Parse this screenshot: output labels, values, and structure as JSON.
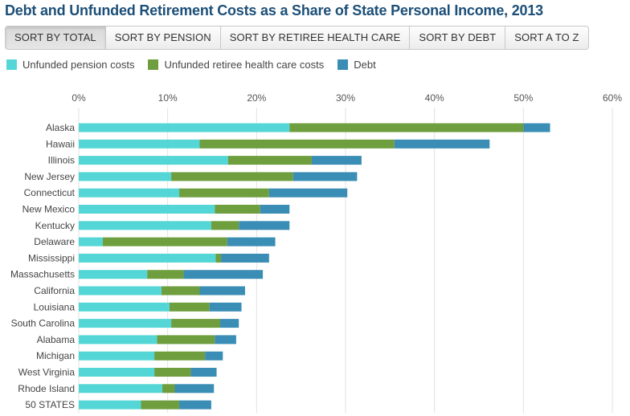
{
  "title": "Debt and Unfunded Retirement Costs as a Share of State Personal Income, 2013",
  "sort_buttons": [
    {
      "label": "SORT BY TOTAL",
      "active": true
    },
    {
      "label": "SORT BY PENSION",
      "active": false
    },
    {
      "label": "SORT BY RETIREE HEALTH CARE",
      "active": false
    },
    {
      "label": "SORT BY DEBT",
      "active": false
    },
    {
      "label": "SORT A TO Z",
      "active": false
    }
  ],
  "colors": {
    "pension": "#55d6d6",
    "health": "#6e9e3e",
    "debt": "#3a8db5",
    "grid": "#e2e2e2",
    "label": "#444444"
  },
  "chart_data": {
    "type": "bar",
    "orientation": "horizontal",
    "stacked": true,
    "title": "Debt and Unfunded Retirement Costs as a Share of State Personal Income, 2013",
    "xlabel": "",
    "ylabel": "",
    "xlim": [
      0,
      60
    ],
    "xticks": [
      "0%",
      "10%",
      "20%",
      "30%",
      "40%",
      "50%",
      "60%"
    ],
    "xtick_values": [
      0,
      10,
      20,
      30,
      40,
      50,
      60
    ],
    "grid": true,
    "legend_position": "top-left",
    "categories": [
      "Alaska",
      "Hawaii",
      "Illinois",
      "New Jersey",
      "Connecticut",
      "New Mexico",
      "Kentucky",
      "Delaware",
      "Mississippi",
      "Massachusetts",
      "California",
      "Louisiana",
      "South Carolina",
      "Alabama",
      "Michigan",
      "West Virginia",
      "Rhode Island",
      "50 STATES"
    ],
    "series": [
      {
        "key": "pension",
        "name": "Unfunded pension costs",
        "values": [
          23.7,
          13.6,
          16.8,
          10.4,
          11.3,
          15.3,
          14.9,
          2.7,
          15.4,
          7.7,
          9.3,
          10.2,
          10.4,
          8.8,
          8.5,
          8.5,
          9.4,
          7.0
        ]
      },
      {
        "key": "health",
        "name": "Unfunded retiree health care costs",
        "values": [
          26.3,
          21.9,
          9.4,
          13.7,
          10.1,
          5.1,
          3.1,
          14.0,
          0.6,
          4.1,
          4.3,
          4.5,
          5.5,
          6.5,
          5.7,
          4.1,
          1.4,
          4.3
        ]
      },
      {
        "key": "debt",
        "name": "Debt",
        "values": [
          3.0,
          10.7,
          5.6,
          7.2,
          8.8,
          3.3,
          5.7,
          5.4,
          5.4,
          8.9,
          5.1,
          3.6,
          2.1,
          2.4,
          2.0,
          2.9,
          4.4,
          3.6
        ]
      }
    ]
  }
}
